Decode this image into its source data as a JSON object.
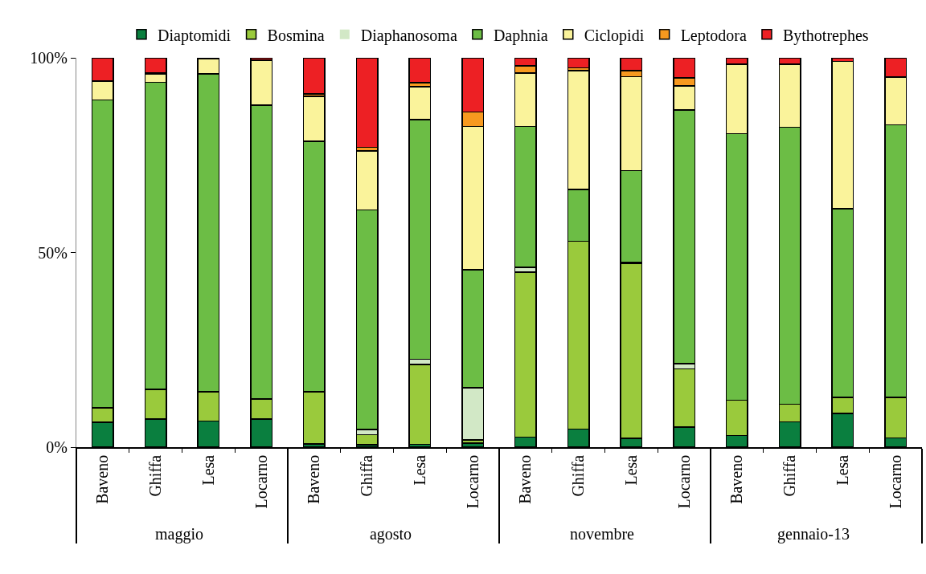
{
  "chart_data": {
    "type": "bar",
    "stacked": true,
    "categories": [
      "Baveno",
      "Ghiffa",
      "Lesa",
      "Locarno",
      "Baveno",
      "Ghiffa",
      "Lesa",
      "Locarno",
      "Baveno",
      "Ghiffa",
      "Lesa",
      "Locarno",
      "Baveno",
      "Ghiffa",
      "Lesa",
      "Locarno"
    ],
    "annotations": [
      "maggio",
      "agosto",
      "novembre",
      "gennaio-13"
    ],
    "series": [
      {
        "name": "Diaptomidi",
        "color": "#0a7f3f",
        "values": [
          6.4,
          7.2,
          6.7,
          7.2,
          0.8,
          0.6,
          0.7,
          1.0,
          2.6,
          4.6,
          2.3,
          5.2,
          3.0,
          6.5,
          8.7,
          2.4
        ]
      },
      {
        "name": "Bosmina",
        "color": "#9aca3c",
        "values": [
          3.7,
          7.6,
          7.5,
          5.2,
          13.4,
          2.6,
          20.5,
          0.9,
          42.3,
          48.3,
          44.8,
          14.9,
          9.1,
          4.5,
          4.1,
          10.4
        ]
      },
      {
        "name": "Diaphanosoma",
        "color": "#d2e8c6",
        "values": [
          0,
          0,
          0,
          0,
          0,
          1.3,
          1.4,
          13.4,
          1.3,
          0,
          0.3,
          1.3,
          0,
          0,
          0,
          0
        ]
      },
      {
        "name": "Daphnia",
        "color": "#6cbd45",
        "values": [
          79.1,
          78.9,
          81.7,
          75.4,
          64.4,
          56.4,
          61.5,
          30.3,
          36.2,
          13.3,
          23.6,
          65.2,
          68.4,
          71.2,
          48.4,
          70.0
        ]
      },
      {
        "name": "Ciclopidi",
        "color": "#faf39b",
        "values": [
          4.7,
          2.2,
          3.8,
          11.6,
          11.5,
          15.2,
          8.5,
          36.8,
          13.7,
          30.5,
          24.2,
          6.2,
          17.9,
          16.2,
          37.9,
          12.3
        ]
      },
      {
        "name": "Leptodora",
        "color": "#f7991f",
        "values": [
          0.2,
          0.3,
          0,
          0,
          0.6,
          0.9,
          1.0,
          3.7,
          1.8,
          0.7,
          1.5,
          2.0,
          0,
          0,
          0,
          0
        ]
      },
      {
        "name": "Bythotrephes",
        "color": "#ed2024",
        "values": [
          5.9,
          3.8,
          0.3,
          0.6,
          9.3,
          23.0,
          6.4,
          13.9,
          2.1,
          2.6,
          3.3,
          5.2,
          1.6,
          1.6,
          0.9,
          4.9
        ]
      }
    ],
    "ylim": [
      0,
      100
    ],
    "yticks": [
      {
        "value": 0,
        "label": "0%"
      },
      {
        "value": 50,
        "label": "50%"
      },
      {
        "value": 100,
        "label": "100%"
      }
    ],
    "grid": false,
    "legend": "top"
  }
}
